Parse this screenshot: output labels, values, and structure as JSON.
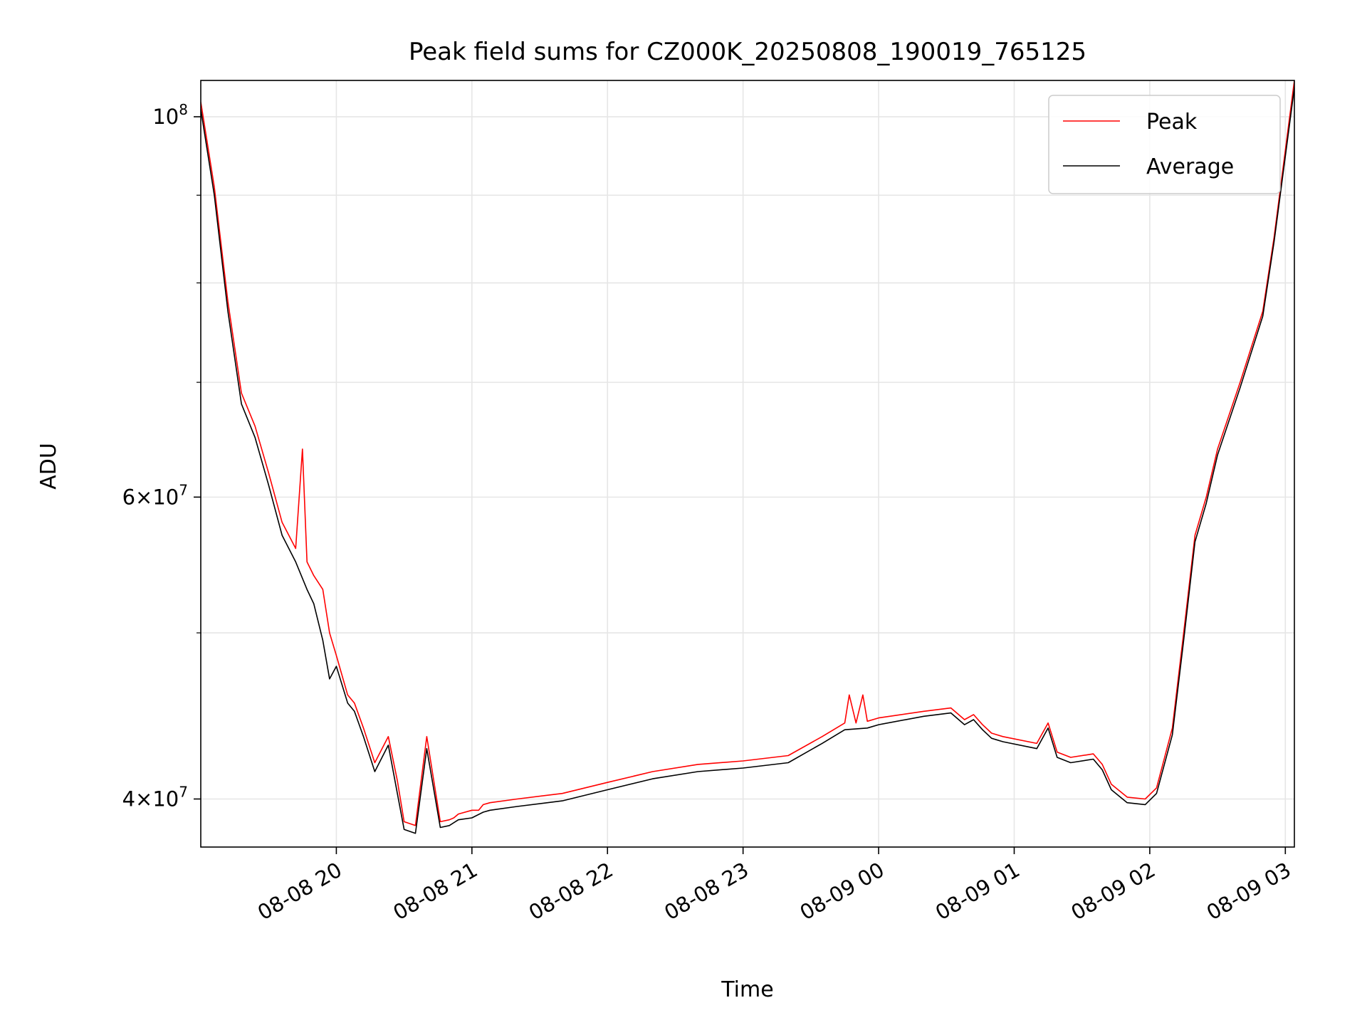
{
  "chart_data": {
    "type": "line",
    "title": "Peak field sums for CZ000K_20250808_190019_765125",
    "xlabel": "Time",
    "ylabel": "ADU",
    "x_unit": "datetime",
    "y_scale": "log",
    "ylim": [
      37500000,
      105000000
    ],
    "xlim": [
      "2025-08-08 19:00",
      "2025-08-09 03:04"
    ],
    "grid": true,
    "legend_position": "top-right",
    "x_ticks": [
      {
        "value": "2025-08-08 20:00",
        "label": "08-08 20"
      },
      {
        "value": "2025-08-08 21:00",
        "label": "08-08 21"
      },
      {
        "value": "2025-08-08 22:00",
        "label": "08-08 22"
      },
      {
        "value": "2025-08-08 23:00",
        "label": "08-08 23"
      },
      {
        "value": "2025-08-09 00:00",
        "label": "08-09 00"
      },
      {
        "value": "2025-08-09 01:00",
        "label": "08-09 01"
      },
      {
        "value": "2025-08-09 02:00",
        "label": "08-09 02"
      },
      {
        "value": "2025-08-09 03:00",
        "label": "08-09 03"
      }
    ],
    "y_ticks_major": [
      {
        "value": 40000000,
        "base": "4×10",
        "exp": "7"
      },
      {
        "value": 60000000,
        "base": "6×10",
        "exp": "7"
      },
      {
        "value": 100000000,
        "base": "10",
        "exp": "8"
      }
    ],
    "y_ticks_minor": [
      50000000,
      70000000,
      80000000,
      90000000
    ],
    "series": [
      {
        "name": "Peak",
        "color": "#ff0000",
        "x": [
          "2025-08-08 19:00",
          "2025-08-08 19:06",
          "2025-08-08 19:12",
          "2025-08-08 19:18",
          "2025-08-08 19:24",
          "2025-08-08 19:30",
          "2025-08-08 19:36",
          "2025-08-08 19:42",
          "2025-08-08 19:45",
          "2025-08-08 19:47",
          "2025-08-08 19:50",
          "2025-08-08 19:54",
          "2025-08-08 19:57",
          "2025-08-08 20:00",
          "2025-08-08 20:05",
          "2025-08-08 20:08",
          "2025-08-08 20:12",
          "2025-08-08 20:17",
          "2025-08-08 20:23",
          "2025-08-08 20:27",
          "2025-08-08 20:30",
          "2025-08-08 20:35",
          "2025-08-08 20:40",
          "2025-08-08 20:46",
          "2025-08-08 20:50",
          "2025-08-08 20:52",
          "2025-08-08 20:54",
          "2025-08-08 21:00",
          "2025-08-08 21:03",
          "2025-08-08 21:05",
          "2025-08-08 21:08",
          "2025-08-08 21:20",
          "2025-08-08 21:40",
          "2025-08-08 22:00",
          "2025-08-08 22:20",
          "2025-08-08 22:40",
          "2025-08-08 23:00",
          "2025-08-08 23:20",
          "2025-08-08 23:35",
          "2025-08-08 23:45",
          "2025-08-08 23:47",
          "2025-08-08 23:50",
          "2025-08-08 23:53",
          "2025-08-08 23:55",
          "2025-08-09 00:00",
          "2025-08-09 00:20",
          "2025-08-09 00:32",
          "2025-08-09 00:38",
          "2025-08-09 00:42",
          "2025-08-09 00:46",
          "2025-08-09 00:50",
          "2025-08-09 00:55",
          "2025-08-09 01:10",
          "2025-08-09 01:15",
          "2025-08-09 01:19",
          "2025-08-09 01:25",
          "2025-08-09 01:35",
          "2025-08-09 01:39",
          "2025-08-09 01:43",
          "2025-08-09 01:50",
          "2025-08-09 01:58",
          "2025-08-09 02:03",
          "2025-08-09 02:10",
          "2025-08-09 02:15",
          "2025-08-09 02:20",
          "2025-08-09 02:25",
          "2025-08-09 02:30",
          "2025-08-09 02:40",
          "2025-08-09 02:50",
          "2025-08-09 02:55",
          "2025-08-09 03:04"
        ],
        "y": [
          102000000,
          91000000,
          78000000,
          69000000,
          66000000,
          62000000,
          58000000,
          56000000,
          64000000,
          55000000,
          54000000,
          53000000,
          50000000,
          48500000,
          46000000,
          45500000,
          44000000,
          42000000,
          43500000,
          41000000,
          38800000,
          38600000,
          43500000,
          38800000,
          38900000,
          39000000,
          39200000,
          39400000,
          39400000,
          39700000,
          39800000,
          40000000,
          40300000,
          40900000,
          41500000,
          41900000,
          42100000,
          42400000,
          43500000,
          44300000,
          46000000,
          44300000,
          46000000,
          44400000,
          44600000,
          45000000,
          45200000,
          44500000,
          44800000,
          44200000,
          43700000,
          43500000,
          43100000,
          44300000,
          42600000,
          42300000,
          42500000,
          41900000,
          40800000,
          40100000,
          40000000,
          40600000,
          44000000,
          50000000,
          57000000,
          60000000,
          64000000,
          70000000,
          77000000,
          85000000,
          105000000
        ]
      },
      {
        "name": "Average",
        "color": "#000000",
        "x": [
          "2025-08-08 19:00",
          "2025-08-08 19:06",
          "2025-08-08 19:12",
          "2025-08-08 19:18",
          "2025-08-08 19:24",
          "2025-08-08 19:30",
          "2025-08-08 19:36",
          "2025-08-08 19:42",
          "2025-08-08 19:47",
          "2025-08-08 19:50",
          "2025-08-08 19:54",
          "2025-08-08 19:57",
          "2025-08-08 20:00",
          "2025-08-08 20:05",
          "2025-08-08 20:08",
          "2025-08-08 20:12",
          "2025-08-08 20:17",
          "2025-08-08 20:23",
          "2025-08-08 20:27",
          "2025-08-08 20:30",
          "2025-08-08 20:35",
          "2025-08-08 20:40",
          "2025-08-08 20:46",
          "2025-08-08 20:50",
          "2025-08-08 20:54",
          "2025-08-08 21:00",
          "2025-08-08 21:05",
          "2025-08-08 21:08",
          "2025-08-08 21:20",
          "2025-08-08 21:40",
          "2025-08-08 22:00",
          "2025-08-08 22:20",
          "2025-08-08 22:40",
          "2025-08-08 23:00",
          "2025-08-08 23:20",
          "2025-08-08 23:35",
          "2025-08-08 23:45",
          "2025-08-08 23:55",
          "2025-08-09 00:00",
          "2025-08-09 00:20",
          "2025-08-09 00:32",
          "2025-08-09 00:38",
          "2025-08-09 00:42",
          "2025-08-09 00:46",
          "2025-08-09 00:50",
          "2025-08-09 00:55",
          "2025-08-09 01:10",
          "2025-08-09 01:15",
          "2025-08-09 01:19",
          "2025-08-09 01:25",
          "2025-08-09 01:35",
          "2025-08-09 01:39",
          "2025-08-09 01:43",
          "2025-08-09 01:50",
          "2025-08-09 01:58",
          "2025-08-09 02:03",
          "2025-08-09 02:10",
          "2025-08-09 02:15",
          "2025-08-09 02:20",
          "2025-08-09 02:25",
          "2025-08-09 02:30",
          "2025-08-09 02:40",
          "2025-08-09 02:50",
          "2025-08-09 02:55",
          "2025-08-09 03:04"
        ],
        "y": [
          101000000,
          90000000,
          77000000,
          68000000,
          65000000,
          61000000,
          57000000,
          55000000,
          53000000,
          52000000,
          49500000,
          47000000,
          47800000,
          45500000,
          45000000,
          43500000,
          41500000,
          43000000,
          40300000,
          38400000,
          38200000,
          42800000,
          38500000,
          38600000,
          38900000,
          39000000,
          39300000,
          39400000,
          39600000,
          39900000,
          40500000,
          41100000,
          41500000,
          41700000,
          42000000,
          43100000,
          43900000,
          44000000,
          44200000,
          44700000,
          44900000,
          44200000,
          44500000,
          43900000,
          43400000,
          43200000,
          42800000,
          44000000,
          42300000,
          42000000,
          42200000,
          41600000,
          40500000,
          39800000,
          39700000,
          40300000,
          43600000,
          49500000,
          56500000,
          59500000,
          63500000,
          69500000,
          76500000,
          84500000,
          104000000
        ]
      }
    ]
  }
}
